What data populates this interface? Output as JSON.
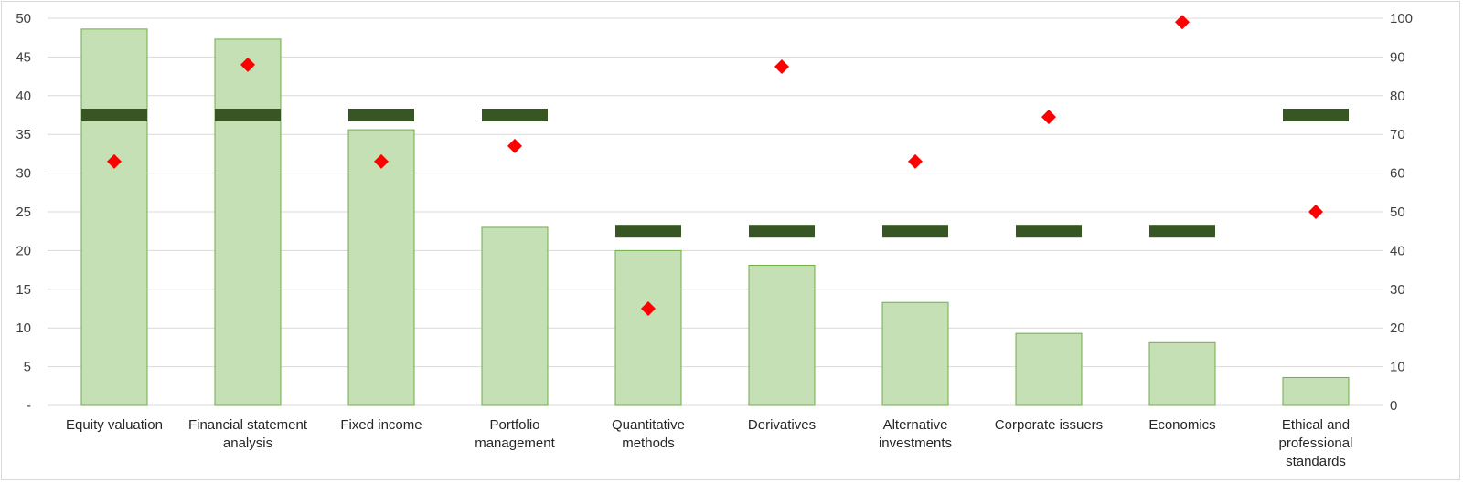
{
  "chart_data": {
    "type": "bar",
    "title": "",
    "xlabel": "",
    "ylabel": "",
    "ylim": [
      0,
      50
    ],
    "y2lim": [
      0,
      100
    ],
    "y_ticks": [
      "-",
      "5",
      "10",
      "15",
      "20",
      "25",
      "30",
      "35",
      "40",
      "45",
      "50"
    ],
    "y2_ticks": [
      "0",
      "10",
      "20",
      "30",
      "40",
      "50",
      "60",
      "70",
      "80",
      "90",
      "100"
    ],
    "grid": true,
    "legend": "none",
    "categories": [
      [
        "Equity valuation"
      ],
      [
        "Financial statement",
        "analysis"
      ],
      [
        "Fixed income"
      ],
      [
        "Portfolio",
        "management"
      ],
      [
        "Quantitative",
        "methods"
      ],
      [
        "Derivatives"
      ],
      [
        "Alternative",
        "investments"
      ],
      [
        "Corporate issuers"
      ],
      [
        "Economics"
      ],
      [
        "Ethical and",
        "professional",
        "standards"
      ]
    ],
    "series": [
      {
        "type": "bar",
        "axis": "left",
        "color": "#c5e0b4",
        "border": "#70ad47",
        "values": [
          48.6,
          47.3,
          35.6,
          23.0,
          20.0,
          18.1,
          13.3,
          9.3,
          8.1,
          3.6
        ]
      },
      {
        "type": "marker-dash",
        "axis": "left",
        "color": "#375623",
        "values": [
          37.5,
          37.5,
          37.5,
          37.5,
          22.5,
          22.5,
          22.5,
          22.5,
          22.5,
          37.5
        ]
      },
      {
        "type": "marker-diamond",
        "axis": "right",
        "color": "#ff0000",
        "values": [
          63,
          88,
          63,
          67,
          25,
          87.5,
          63,
          74.5,
          99,
          50
        ]
      }
    ]
  }
}
